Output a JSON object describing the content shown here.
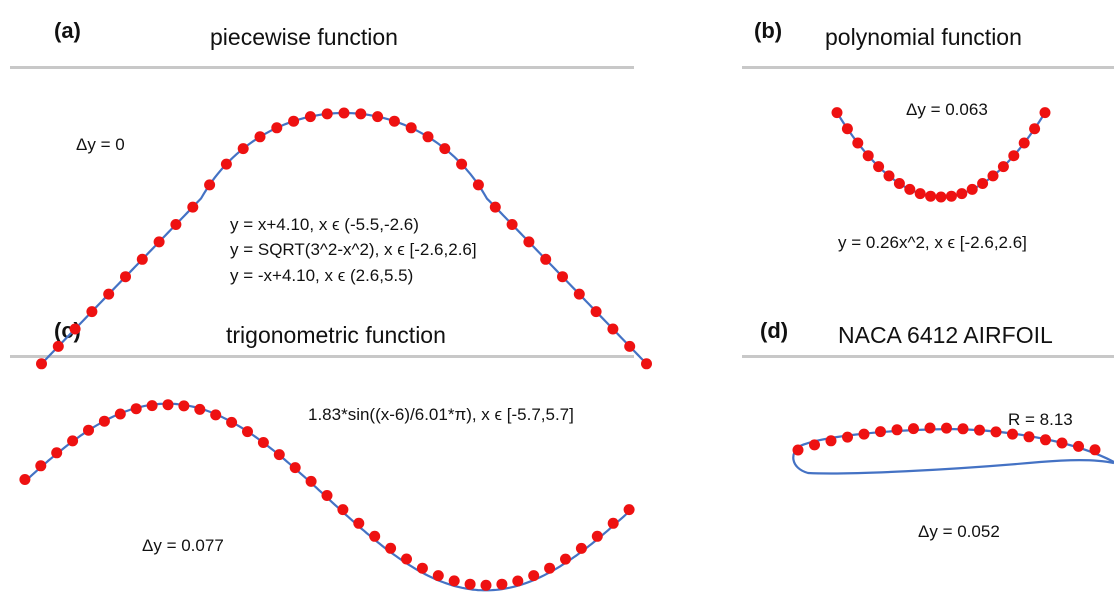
{
  "colors": {
    "curve": "#4472c4",
    "points": "#ee1111",
    "rule": "#c8c8c8"
  },
  "panels": [
    {
      "id": "a",
      "letter": "(a)",
      "title": "piecewise function",
      "notes": {
        "dy": "Δy = 0",
        "eq1": "y = x+4.10, x ϵ (-5.5,-2.6)",
        "eq2": "y = SQRT(3^2-x^2), x ϵ [-2.6,2.6]",
        "eq3": "y = -x+4.10, x ϵ (2.6,5.5)"
      }
    },
    {
      "id": "b",
      "letter": "(b)",
      "title": "polynomial function",
      "notes": {
        "dy": "Δy = 0.063",
        "eq1": "y = 0.26x^2, x ϵ [-2.6,2.6]"
      }
    },
    {
      "id": "c",
      "letter": "(c)",
      "title": "trigonometric function",
      "notes": {
        "eq1": "1.83*sin((x-6)/6.01*π), x ϵ [-5.7,5.7]",
        "dy": "Δy = 0.077"
      }
    },
    {
      "id": "d",
      "letter": "(d)",
      "title": "NACA 6412 AIRFOIL",
      "notes": {
        "r": "R = 8.13",
        "dy": "Δy = 0.052"
      }
    }
  ]
}
